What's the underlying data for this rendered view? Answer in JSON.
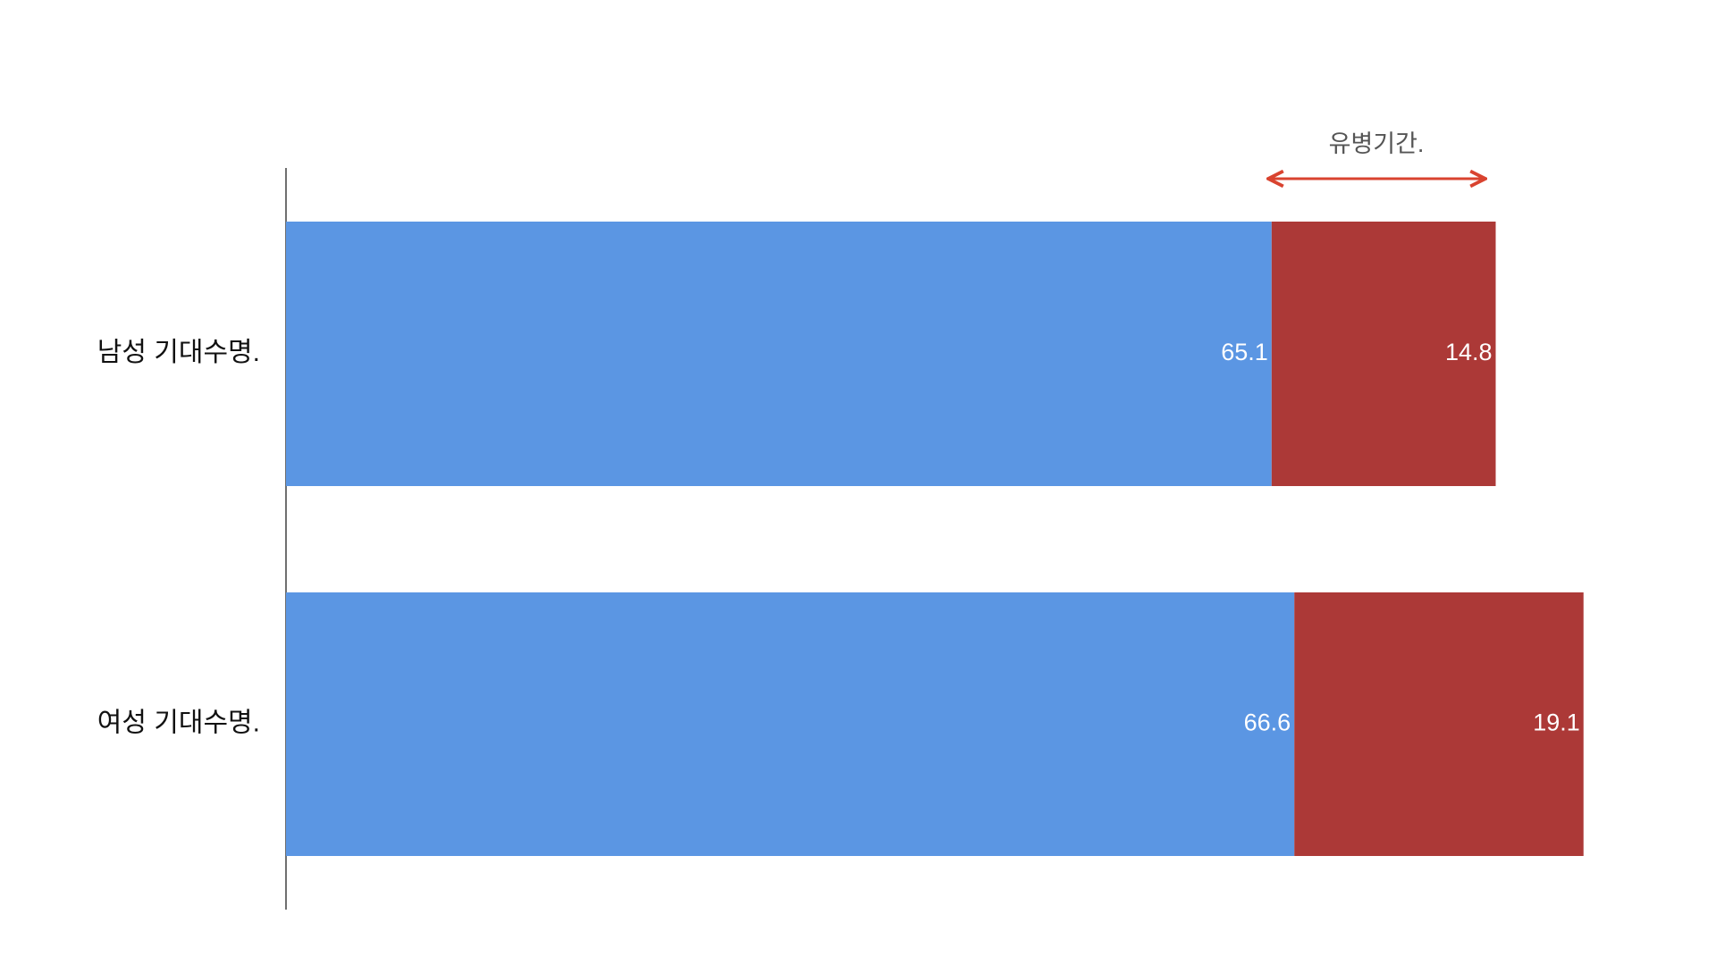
{
  "chart_data": {
    "type": "stacked-bar-horizontal",
    "categories": [
      "남성 기대수명.",
      "여성 기대수명."
    ],
    "series": [
      {
        "color": "#5b96e3",
        "values": [
          65.1,
          66.6
        ]
      },
      {
        "color": "#ac3937",
        "values": [
          14.8,
          19.1
        ]
      }
    ],
    "annotation": "유병기간."
  }
}
